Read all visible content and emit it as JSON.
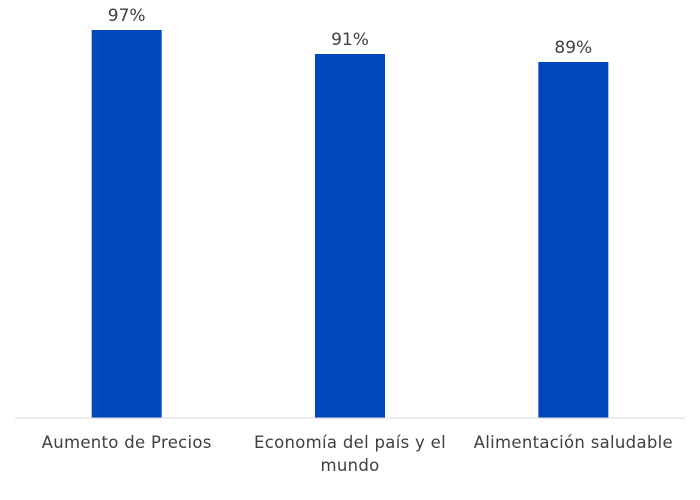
{
  "chart_data": {
    "type": "bar",
    "categories": [
      "Aumento de Precios",
      "Economía del país y el mundo",
      "Alimentación saludable"
    ],
    "values": [
      97,
      91,
      89
    ],
    "value_labels": [
      "97%",
      "91%",
      "89%"
    ],
    "unit": "%",
    "title": "",
    "xlabel": "",
    "ylabel": "",
    "ylim": [
      0,
      100
    ],
    "grid": false,
    "legend": "none",
    "bar_color": "#0047BB",
    "axis_color": "#D9D9D9",
    "text_color": "#404040"
  }
}
